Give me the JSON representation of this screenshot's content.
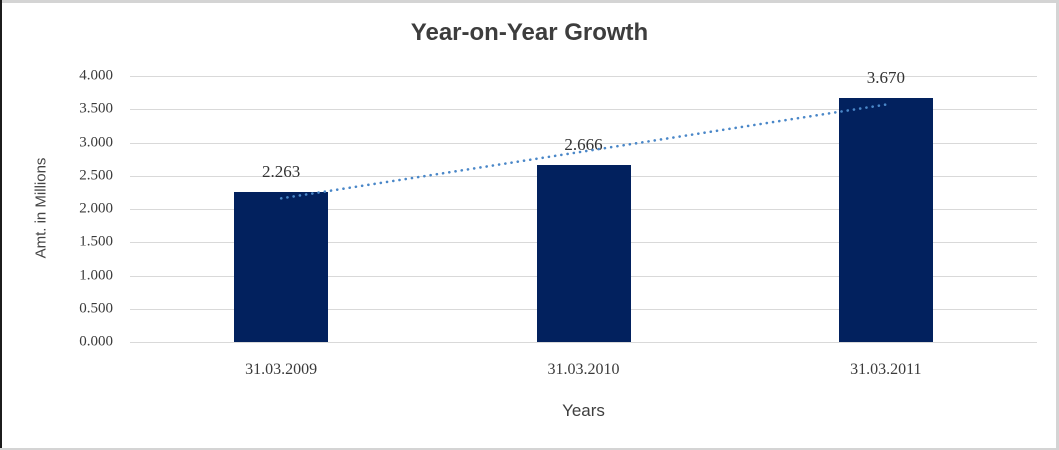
{
  "frame": {
    "border_color": "#d4d4d4",
    "left_border_color": "#1c1c1c",
    "background": "#ffffff"
  },
  "chart_data": {
    "type": "bar",
    "title": "Year-on-Year Growth",
    "xlabel": "Years",
    "ylabel": "Amt. in Millions",
    "categories": [
      "31.03.2009",
      "31.03.2010",
      "31.03.2011"
    ],
    "values": [
      2.263,
      2.666,
      3.67
    ],
    "value_labels": [
      "2.263",
      "2.666",
      "3.670"
    ],
    "ylim": [
      0,
      4
    ],
    "ytick_labels": [
      "0.000",
      "0.500",
      "1.000",
      "1.500",
      "2.000",
      "2.500",
      "3.000",
      "3.500",
      "4.000"
    ],
    "grid": true,
    "legend": "none",
    "bar_color": "#02215e",
    "gridline_color": "#d9d9d9",
    "trendline": {
      "type": "linear",
      "style": "dotted",
      "color": "#4a87c8",
      "start_value": 2.16,
      "end_value": 3.57
    }
  }
}
